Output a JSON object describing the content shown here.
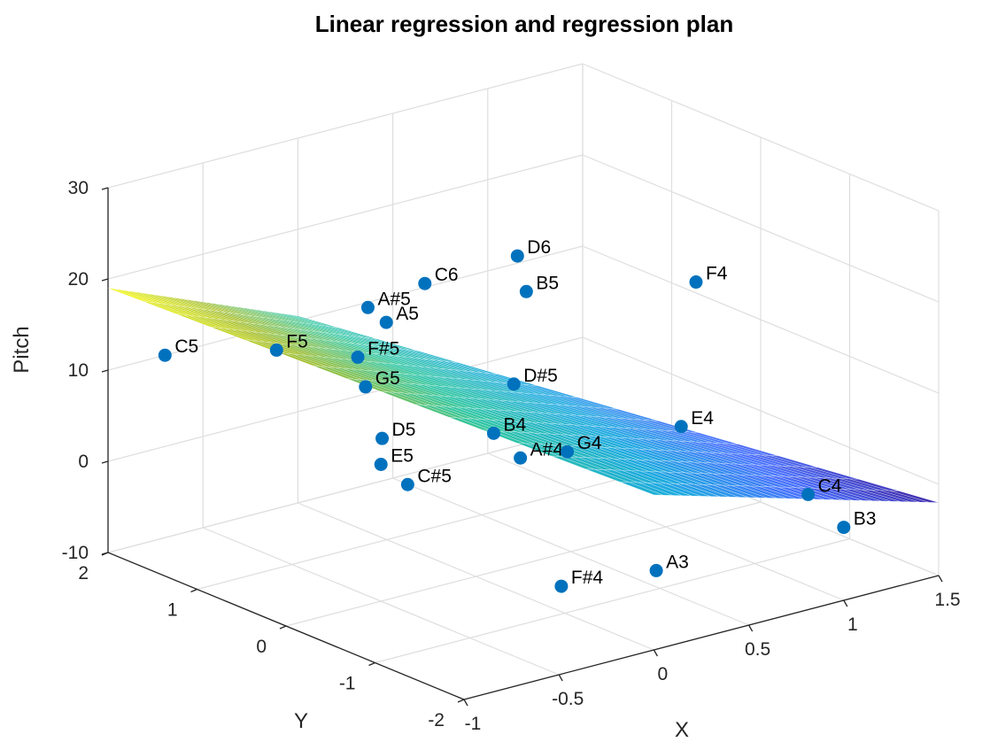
{
  "chart_data": {
    "type": "scatter",
    "title": "Linear regression and regression plan",
    "xlabel": "X",
    "ylabel": "Y",
    "zlabel": "Pitch",
    "xlim": [
      -1,
      1.5
    ],
    "ylim": [
      -2,
      2
    ],
    "zlim": [
      -10,
      30
    ],
    "x_ticks": [
      "-1",
      "-0.5",
      "0",
      "0.5",
      "1",
      "1.5"
    ],
    "y_ticks": [
      "-2",
      "-1",
      "0",
      "1",
      "2"
    ],
    "z_ticks": [
      "-10",
      "0",
      "10",
      "20",
      "30"
    ],
    "grid": true,
    "colors": {
      "point": "#0072bd",
      "surface_colormap": [
        "#3e26a8",
        "#4770fe",
        "#1caadf",
        "#2dc5a1",
        "#a3bd29",
        "#f9fb0e"
      ]
    },
    "regression_plane": {
      "corners": [
        {
          "x": -1,
          "y": 2,
          "z": 19
        },
        {
          "x": 0,
          "y": 2,
          "z": 10.5
        },
        {
          "x": 1.5,
          "y": -2,
          "z": -2
        },
        {
          "x": 0,
          "y": -2,
          "z": 7
        }
      ]
    },
    "points": [
      {
        "label": "C5",
        "x": -0.7,
        "y": 2.0,
        "z": 10
      },
      {
        "label": "F5",
        "x": -0.3,
        "y": 1.6,
        "z": 10
      },
      {
        "label": "A#5",
        "x": -0.1,
        "y": 1.0,
        "z": 16
      },
      {
        "label": "A5",
        "x": -0.05,
        "y": 0.9,
        "z": 14.5
      },
      {
        "label": "F#5",
        "x": -0.2,
        "y": 0.9,
        "z": 11.5
      },
      {
        "label": "G5",
        "x": -0.3,
        "y": 0.6,
        "z": 10
      },
      {
        "label": "D5",
        "x": -0.4,
        "y": 0.2,
        "z": 6.5
      },
      {
        "label": "E5",
        "x": -0.5,
        "y": 0.0,
        "z": 5
      },
      {
        "label": "C#5",
        "x": -0.5,
        "y": -0.3,
        "z": 4
      },
      {
        "label": "C6",
        "x": 0.2,
        "y": 1.0,
        "z": 17
      },
      {
        "label": "D6",
        "x": 0.5,
        "y": 0.6,
        "z": 20
      },
      {
        "label": "B5",
        "x": 0.5,
        "y": 0.5,
        "z": 16.5
      },
      {
        "label": "D#5",
        "x": 0.2,
        "y": 0.0,
        "z": 10
      },
      {
        "label": "B4",
        "x": 0.0,
        "y": -0.2,
        "z": 6.5
      },
      {
        "label": "A#4",
        "x": 0.0,
        "y": -0.5,
        "z": 5
      },
      {
        "label": "G4",
        "x": 0.2,
        "y": -0.6,
        "z": 5
      },
      {
        "label": "F4",
        "x": 1.3,
        "y": 0.3,
        "z": 14
      },
      {
        "label": "E4",
        "x": 0.8,
        "y": -0.6,
        "z": 4.5
      },
      {
        "label": "C4",
        "x": 1.0,
        "y": -1.6,
        "z": 0
      },
      {
        "label": "F#4",
        "x": -0.3,
        "y": -1.6,
        "z": -3
      },
      {
        "label": "A3",
        "x": 0.2,
        "y": -1.6,
        "z": -4
      },
      {
        "label": "B3",
        "x": 1.0,
        "y": -2.0,
        "z": -2
      }
    ]
  }
}
